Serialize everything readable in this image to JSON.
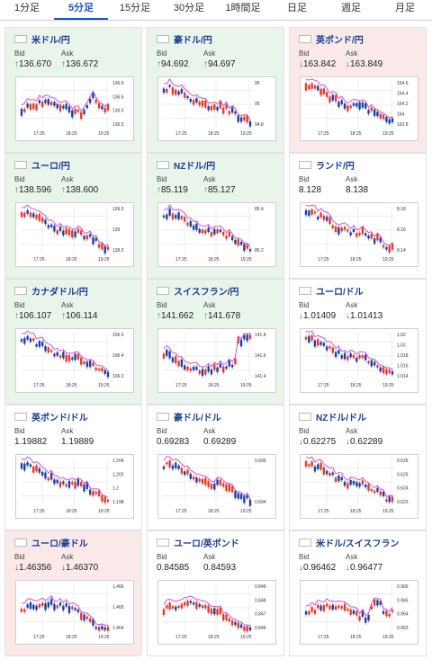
{
  "tabs": [
    "1分足",
    "5分足",
    "15分足",
    "30分足",
    "1時間足",
    "日足",
    "週足",
    "月足"
  ],
  "active_tab": 1,
  "labels": {
    "bid": "Bid",
    "ask": "Ask"
  },
  "colors": {
    "up": "#2d9a3a",
    "down": "#d0342c",
    "ma": "#cc44cc",
    "candle_up": "#e33b2e",
    "candle_down": "#1e3fa6"
  },
  "pairs": [
    {
      "name": "米ドル/円",
      "bid": "136.670",
      "ask": "136.672",
      "dir": "up",
      "bg": "up",
      "trend": "up_spike",
      "yticks": [
        "136.6",
        "136.6",
        "136.5",
        "136.5"
      ],
      "xticks": [
        "17:25",
        "18:25",
        "19:25"
      ]
    },
    {
      "name": "豪ドル/円",
      "bid": "94.692",
      "ask": "94.697",
      "dir": "up",
      "bg": "up",
      "trend": "down",
      "yticks": [
        "95",
        "95",
        "94.8"
      ],
      "xticks": [
        "17:25",
        "18:25",
        "19:25"
      ]
    },
    {
      "name": "英ポンド/円",
      "bid": "163.842",
      "ask": "163.849",
      "dir": "down",
      "bg": "down",
      "trend": "down",
      "yticks": [
        "164.6",
        "164.4",
        "164.2",
        "164",
        "163.8"
      ],
      "xticks": [
        "17:25",
        "18:25",
        "19:25"
      ]
    },
    {
      "name": "ユーロ/円",
      "bid": "138.596",
      "ask": "138.600",
      "dir": "up",
      "bg": "up",
      "trend": "down",
      "yticks": [
        "139.5",
        "139",
        "138.5"
      ],
      "xticks": [
        "17:25",
        "18:25",
        "19:25"
      ]
    },
    {
      "name": "NZドル/円",
      "bid": "85.119",
      "ask": "85.127",
      "dir": "up",
      "bg": "up",
      "trend": "down",
      "yticks": [
        "85.4",
        "85.2"
      ],
      "xticks": [
        "17:25",
        "18:25",
        "19:25"
      ]
    },
    {
      "name": "ランド/円",
      "bid": "8.128",
      "ask": "8.138",
      "dir": "none",
      "bg": "neutral",
      "trend": "down",
      "yticks": [
        "8.18",
        "8.16",
        "8.14"
      ],
      "xticks": [
        "17:25",
        "18:25",
        "19:25"
      ]
    },
    {
      "name": "カナダドル/円",
      "bid": "106.107",
      "ask": "106.114",
      "dir": "up",
      "bg": "up",
      "trend": "down",
      "yticks": [
        "106.6",
        "106.4",
        "106.2"
      ],
      "xticks": [
        "17:25",
        "18:25",
        "19:25"
      ]
    },
    {
      "name": "スイスフラン/円",
      "bid": "141.662",
      "ask": "141.678",
      "dir": "up",
      "bg": "up",
      "trend": "dip_up",
      "yticks": [
        "141.8",
        "141.6",
        "141.4"
      ],
      "xticks": [
        "17:25",
        "18:25",
        "19:25"
      ]
    },
    {
      "name": "ユーロ/ドル",
      "bid": "1.01409",
      "ask": "1.01413",
      "dir": "down",
      "bg": "neutral",
      "trend": "down",
      "yticks": [
        "1.02",
        "1.02",
        "1.018",
        "1.016",
        "1.014"
      ],
      "xticks": [
        "17:25",
        "18:25",
        "19:25"
      ]
    },
    {
      "name": "英ポンド/ドル",
      "bid": "1.19882",
      "ask": "1.19889",
      "dir": "none",
      "bg": "neutral",
      "trend": "down",
      "yticks": [
        "1.204",
        "1.202",
        "1.2",
        "1.198"
      ],
      "xticks": [
        "17:25",
        "18:25",
        "19:25"
      ]
    },
    {
      "name": "豪ドル/ドル",
      "bid": "0.69283",
      "ask": "0.69289",
      "dir": "none",
      "bg": "neutral",
      "trend": "down",
      "yticks": [
        "0.696",
        "0.694"
      ],
      "xticks": [
        "17:25",
        "18:25",
        "19:25"
      ]
    },
    {
      "name": "NZドル/ドル",
      "bid": "0.62275",
      "ask": "0.62289",
      "dir": "down",
      "bg": "neutral",
      "trend": "down",
      "yticks": [
        "0.626",
        "0.625",
        "0.624",
        "0.623"
      ],
      "xticks": [
        "17:25",
        "18:25",
        "19:25"
      ]
    },
    {
      "name": "ユーロ/豪ドル",
      "bid": "1.46356",
      "ask": "1.46370",
      "dir": "down",
      "bg": "down",
      "trend": "hump_down",
      "yticks": [
        "1.466",
        "1.465",
        "1.464"
      ],
      "xticks": [
        "17:25",
        "18:25",
        "19:25"
      ]
    },
    {
      "name": "ユーロ/英ポンド",
      "bid": "0.84585",
      "ask": "0.84593",
      "dir": "none",
      "bg": "neutral",
      "trend": "hump_down",
      "yticks": [
        "0.849",
        "0.848",
        "0.847",
        "0.846"
      ],
      "xticks": [
        "17:25",
        "18:25",
        "19:25"
      ]
    },
    {
      "name": "米ドル/スイスフラン",
      "bid": "0.96462",
      "ask": "0.96477",
      "dir": "down",
      "bg": "neutral",
      "trend": "up_spike",
      "yticks": [
        "0.966",
        "0.965",
        "0.964",
        "0.963"
      ],
      "xticks": [
        "17:25",
        "18:25",
        "19:25"
      ]
    }
  ]
}
